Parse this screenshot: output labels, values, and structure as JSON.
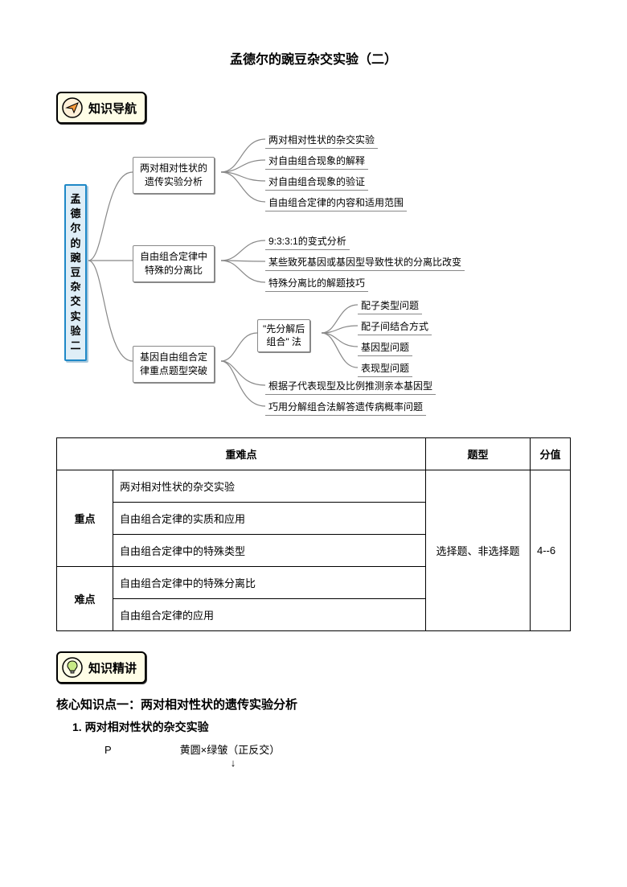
{
  "title": "孟德尔的豌豆杂交实验（二）",
  "badge1": {
    "label": "知识导航",
    "icon_color": "#ff9d3b",
    "icon_bg": "#fff0d8"
  },
  "badge2": {
    "label": "知识精讲",
    "icon_color": "#8bc34a",
    "icon_bg": "#fffde7"
  },
  "mindmap": {
    "root": "孟德尔的豌豆杂交实验二",
    "mid1": "两对相对性状的\n遗传实验分析",
    "mid2": "自由组合定律中\n特殊的分离比",
    "mid3": "基因自由组合定\n律重点题型突破",
    "quote": "\"先分解后\n组合\" 法",
    "leaves1": [
      "两对相对性状的杂交实验",
      "对自由组合现象的解释",
      "对自由组合现象的验证",
      "自由组合定律的内容和适用范围"
    ],
    "leaves2": [
      "9:3:3:1的变式分析",
      "某些致死基因或基因型导致性状的分离比改变",
      "特殊分离比的解题技巧"
    ],
    "leaves3a": [
      "配子类型问题",
      "配子间结合方式",
      "基因型问题",
      "表现型问题"
    ],
    "leaves3b": [
      "根据子代表现型及比例推测亲本基因型",
      "巧用分解组合法解答遗传病概率问题"
    ]
  },
  "table": {
    "headers": [
      "重难点",
      "题型",
      "分值"
    ],
    "row_labels": [
      "重点",
      "难点"
    ],
    "rows_zd": [
      "两对相对性状的杂交实验",
      "自由组合定律的实质和应用",
      "自由组合定律中的特殊类型"
    ],
    "rows_nd": [
      "自由组合定律中的特殊分离比",
      "自由组合定律的应用"
    ],
    "qtype": "选择题、非选择题",
    "score": "4--6"
  },
  "core": {
    "subtitle": "核心知识点一：两对相对性状的遗传实验分析",
    "point1": "1. 两对相对性状的杂交实验",
    "p_label": "P",
    "cross": "黄圆×绿皱（正反交）",
    "arrow": "↓"
  },
  "colors": {
    "connector": "#888888"
  }
}
